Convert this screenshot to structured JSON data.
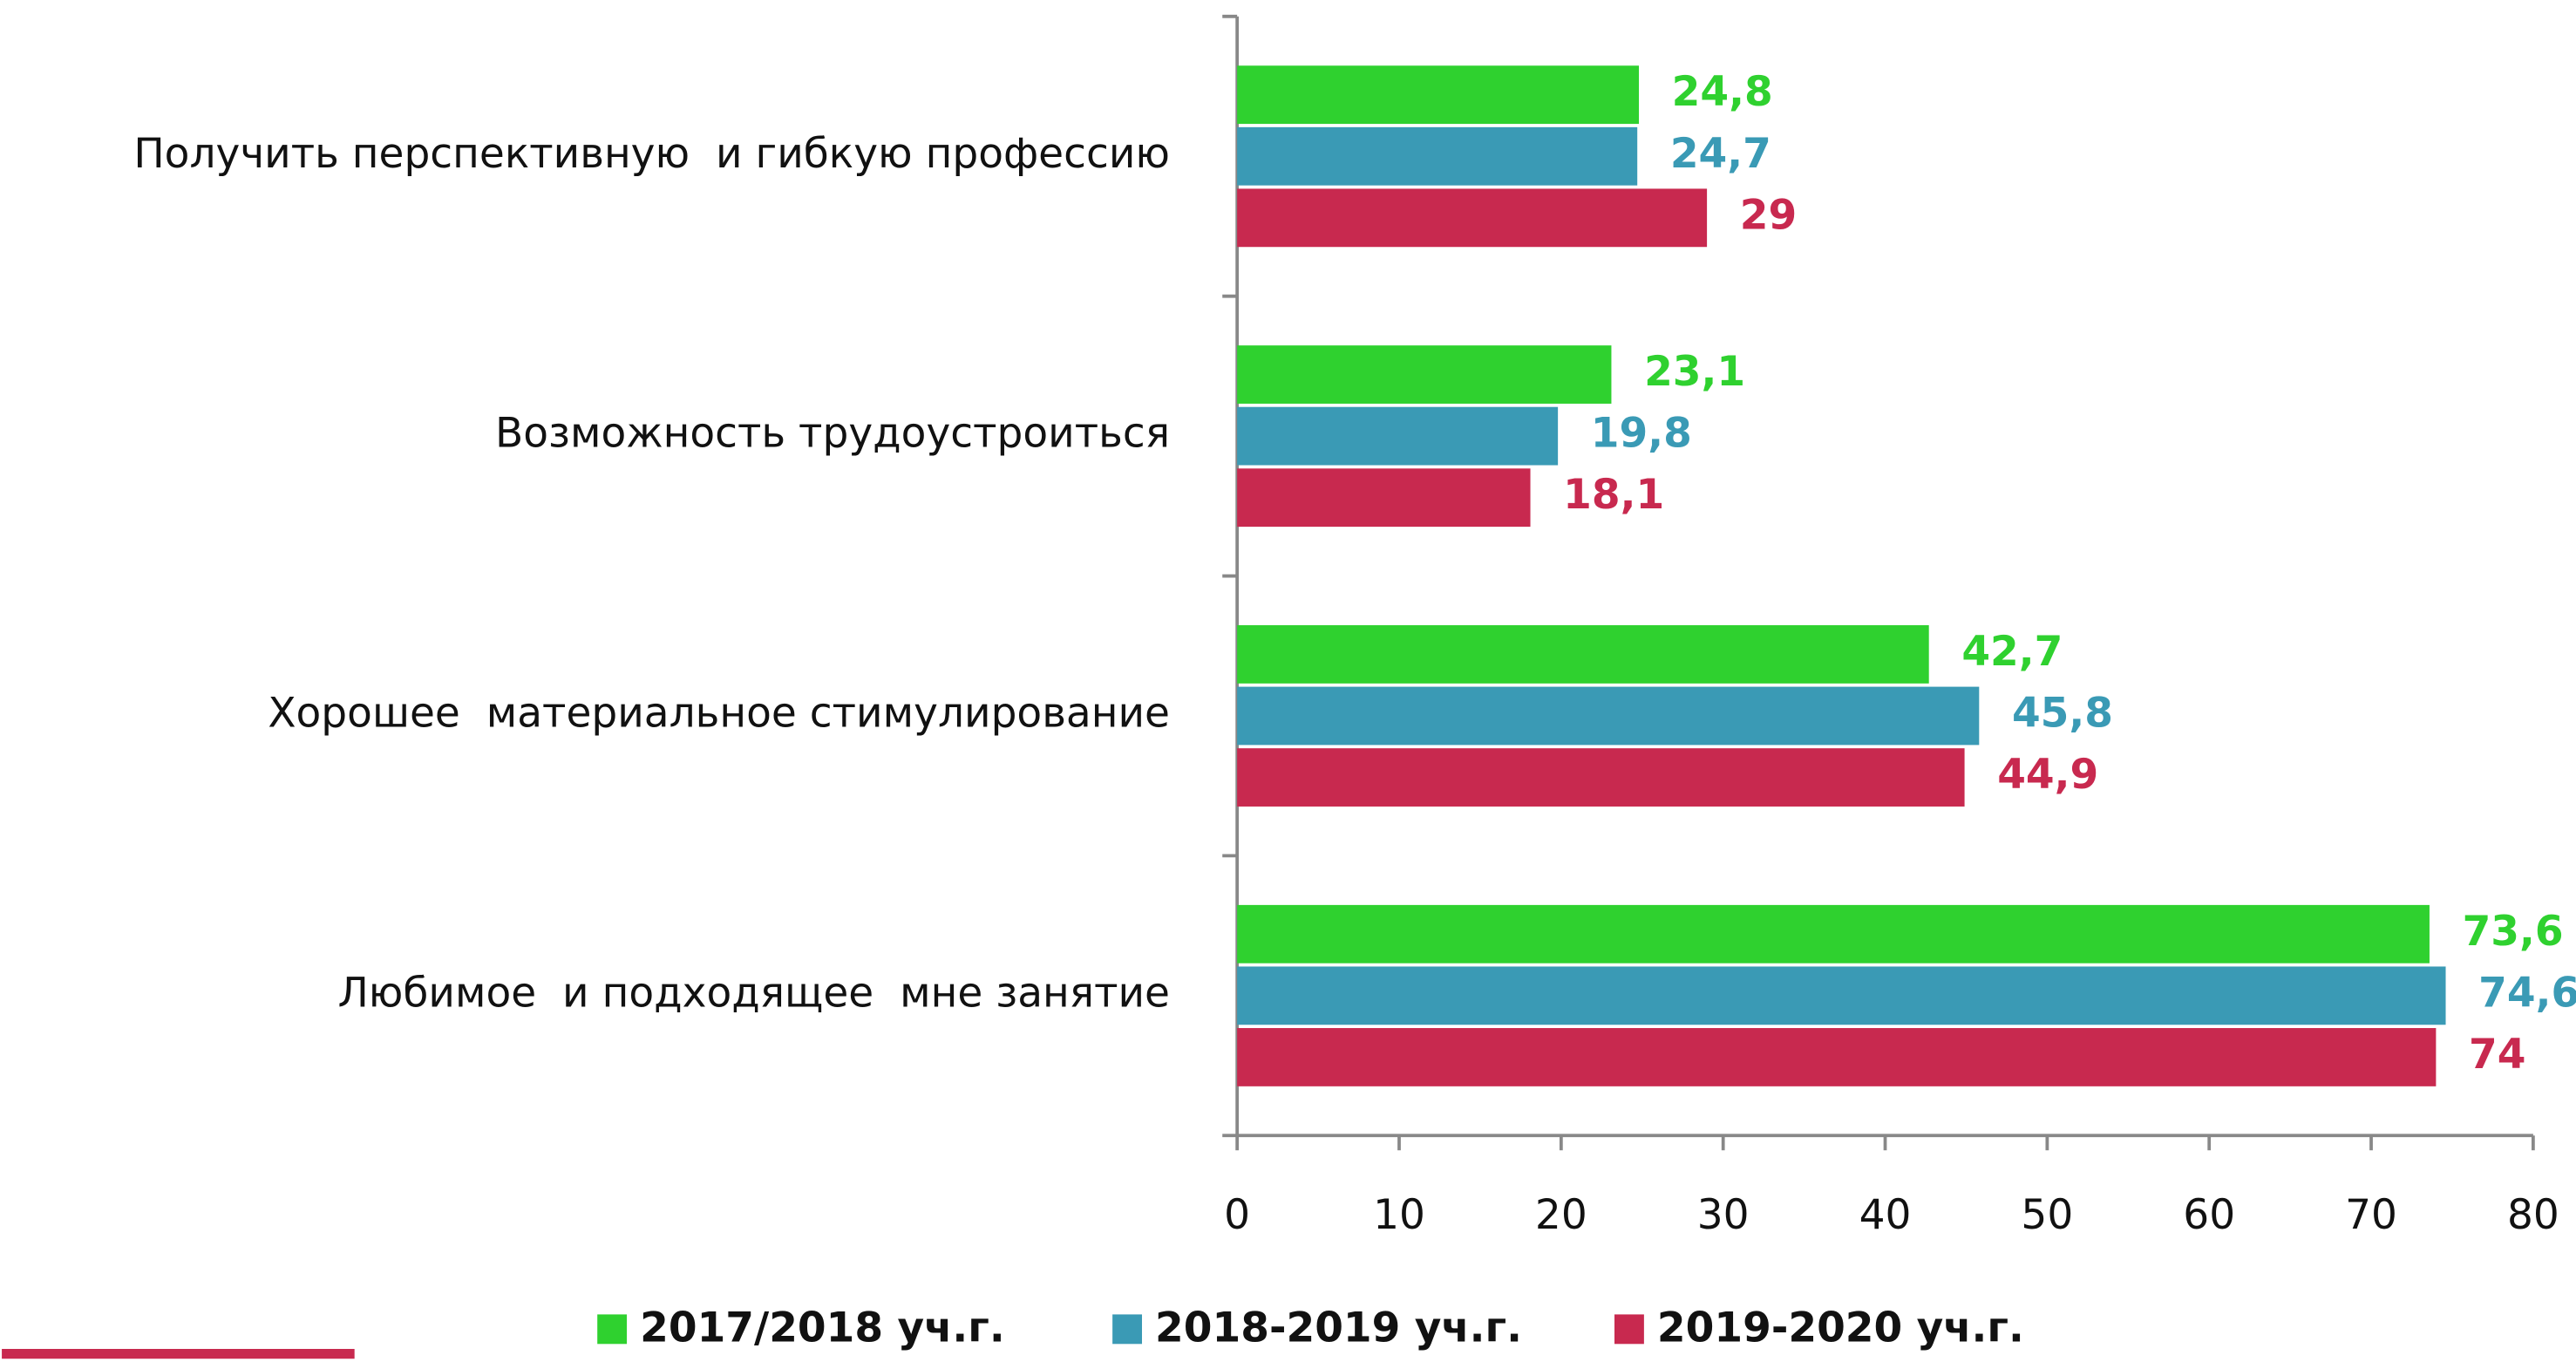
{
  "chart_data": {
    "type": "hbar",
    "categories": [
      "Получить перспективную  и гибкую профессию",
      "Возможность трудоустроиться",
      "Хорошее  материальное стимулирование",
      "Любимое  и подходящее  мне занятие"
    ],
    "series": [
      {
        "name": "2017/2018 уч.г.",
        "color": "#2fd12f",
        "values": [
          24.8,
          23.1,
          42.7,
          73.6
        ],
        "value_labels": [
          "24,8",
          "23,1",
          "42,7",
          "73,6"
        ]
      },
      {
        "name": "2018-2019 уч.г.",
        "color": "#3a9ab5",
        "values": [
          24.7,
          19.8,
          45.8,
          74.6
        ],
        "value_labels": [
          "24,7",
          "19,8",
          "45,8",
          "74,6"
        ]
      },
      {
        "name": "2019-2020 уч.г.",
        "color": "#c8294f",
        "values": [
          29,
          18.1,
          44.9,
          74
        ],
        "value_labels": [
          "29",
          "18,1",
          "44,9",
          "74"
        ]
      }
    ],
    "xlim": [
      0,
      80
    ],
    "xticks": [
      0,
      10,
      20,
      30,
      40,
      50,
      60,
      70,
      80
    ],
    "legend": "bottom"
  }
}
